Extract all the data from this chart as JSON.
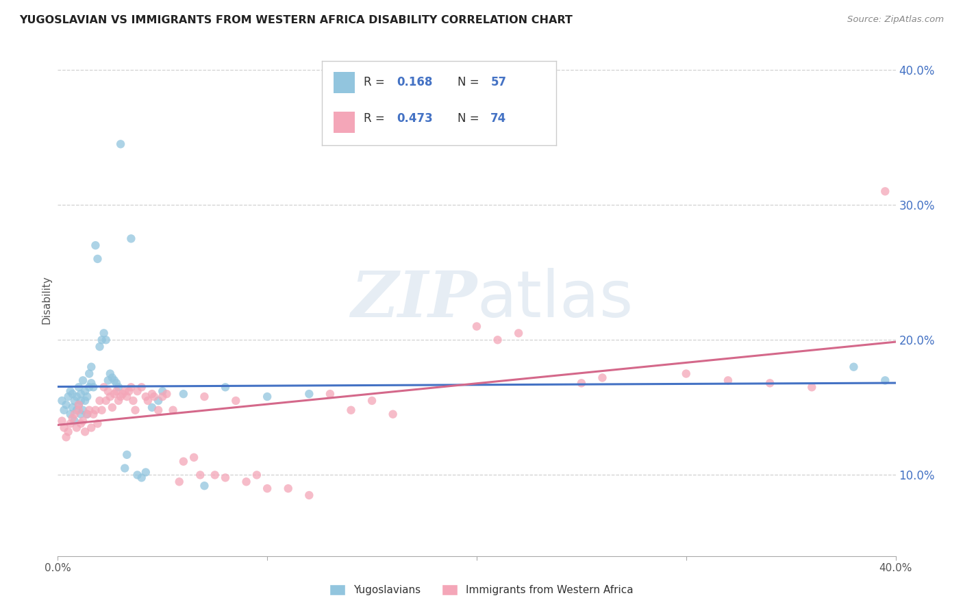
{
  "title": "YUGOSLAVIAN VS IMMIGRANTS FROM WESTERN AFRICA DISABILITY CORRELATION CHART",
  "source": "Source: ZipAtlas.com",
  "ylabel": "Disability",
  "watermark": "ZIPatlas",
  "legend_xlabel1": "Yugoslavians",
  "legend_xlabel2": "Immigrants from Western Africa",
  "blue_color": "#92c5de",
  "pink_color": "#f4a6b8",
  "blue_line_color": "#4472c4",
  "pink_line_color": "#d4688a",
  "title_color": "#222222",
  "axis_label_color": "#4472c4",
  "grid_color": "#cccccc",
  "blue_scatter_x": [
    0.002,
    0.003,
    0.004,
    0.005,
    0.006,
    0.006,
    0.007,
    0.007,
    0.008,
    0.008,
    0.009,
    0.009,
    0.01,
    0.01,
    0.011,
    0.011,
    0.011,
    0.012,
    0.012,
    0.013,
    0.013,
    0.014,
    0.014,
    0.015,
    0.015,
    0.016,
    0.016,
    0.017,
    0.018,
    0.019,
    0.02,
    0.021,
    0.022,
    0.023,
    0.024,
    0.025,
    0.026,
    0.027,
    0.028,
    0.029,
    0.03,
    0.032,
    0.033,
    0.035,
    0.038,
    0.04,
    0.042,
    0.045,
    0.048,
    0.05,
    0.06,
    0.07,
    0.08,
    0.1,
    0.12,
    0.38,
    0.395
  ],
  "blue_scatter_y": [
    0.155,
    0.148,
    0.152,
    0.158,
    0.162,
    0.145,
    0.15,
    0.16,
    0.14,
    0.155,
    0.158,
    0.148,
    0.165,
    0.152,
    0.145,
    0.16,
    0.155,
    0.148,
    0.17,
    0.155,
    0.162,
    0.145,
    0.158,
    0.175,
    0.165,
    0.168,
    0.18,
    0.165,
    0.27,
    0.26,
    0.195,
    0.2,
    0.205,
    0.2,
    0.17,
    0.175,
    0.172,
    0.17,
    0.168,
    0.165,
    0.345,
    0.105,
    0.115,
    0.275,
    0.1,
    0.098,
    0.102,
    0.15,
    0.155,
    0.162,
    0.16,
    0.092,
    0.165,
    0.158,
    0.16,
    0.18,
    0.17
  ],
  "pink_scatter_x": [
    0.002,
    0.003,
    0.004,
    0.005,
    0.006,
    0.007,
    0.008,
    0.009,
    0.01,
    0.01,
    0.011,
    0.012,
    0.013,
    0.014,
    0.015,
    0.016,
    0.017,
    0.018,
    0.019,
    0.02,
    0.021,
    0.022,
    0.023,
    0.024,
    0.025,
    0.026,
    0.027,
    0.028,
    0.029,
    0.03,
    0.031,
    0.032,
    0.033,
    0.034,
    0.035,
    0.036,
    0.037,
    0.038,
    0.04,
    0.042,
    0.043,
    0.045,
    0.046,
    0.048,
    0.05,
    0.052,
    0.055,
    0.058,
    0.06,
    0.065,
    0.068,
    0.07,
    0.075,
    0.08,
    0.085,
    0.09,
    0.095,
    0.1,
    0.11,
    0.12,
    0.13,
    0.14,
    0.15,
    0.16,
    0.2,
    0.21,
    0.22,
    0.25,
    0.26,
    0.3,
    0.32,
    0.34,
    0.36,
    0.395
  ],
  "pink_scatter_y": [
    0.14,
    0.135,
    0.128,
    0.132,
    0.138,
    0.142,
    0.145,
    0.135,
    0.148,
    0.152,
    0.138,
    0.14,
    0.132,
    0.145,
    0.148,
    0.135,
    0.145,
    0.148,
    0.138,
    0.155,
    0.148,
    0.165,
    0.155,
    0.162,
    0.158,
    0.15,
    0.16,
    0.162,
    0.155,
    0.158,
    0.16,
    0.162,
    0.158,
    0.162,
    0.165,
    0.155,
    0.148,
    0.162,
    0.165,
    0.158,
    0.155,
    0.16,
    0.158,
    0.148,
    0.158,
    0.16,
    0.148,
    0.095,
    0.11,
    0.113,
    0.1,
    0.158,
    0.1,
    0.098,
    0.155,
    0.095,
    0.1,
    0.09,
    0.09,
    0.085,
    0.16,
    0.148,
    0.155,
    0.145,
    0.21,
    0.2,
    0.205,
    0.168,
    0.172,
    0.175,
    0.17,
    0.168,
    0.165,
    0.31
  ],
  "xlim": [
    0.0,
    0.4
  ],
  "ylim": [
    0.04,
    0.42
  ],
  "yticks": [
    0.1,
    0.2,
    0.3,
    0.4
  ],
  "ytick_labels": [
    "10.0%",
    "20.0%",
    "30.0%",
    "40.0%"
  ]
}
